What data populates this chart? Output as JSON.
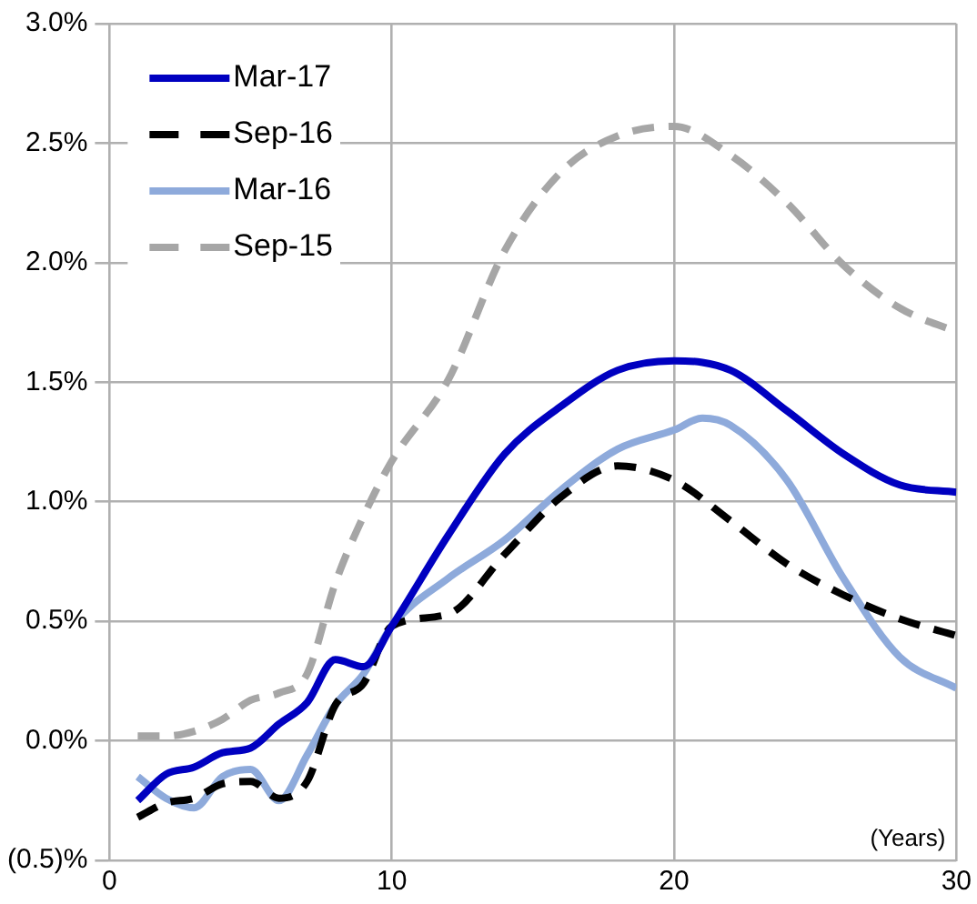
{
  "chart_data": {
    "type": "line",
    "legend": "top left",
    "grid": true,
    "marker": "none",
    "annotations": [
      "(Years)"
    ],
    "xlim": [
      0,
      30
    ],
    "xticks": [
      0,
      10,
      20,
      30
    ],
    "ylim": [
      -0.5,
      3.0
    ],
    "yticks": [
      {
        "value": -0.5,
        "label": "(0.5)%"
      },
      {
        "value": 0,
        "label": "0.0%"
      },
      {
        "value": 0.5,
        "label": "0.5%"
      },
      {
        "value": 1,
        "label": "1.0%"
      },
      {
        "value": 1.5,
        "label": "1.5%"
      },
      {
        "value": 2,
        "label": "2.0%"
      },
      {
        "value": 2.5,
        "label": "2.5%"
      },
      {
        "value": 3,
        "label": "3.0%"
      }
    ],
    "x": [
      1,
      2,
      3,
      4,
      5,
      6,
      7,
      8,
      9,
      10,
      12,
      14,
      16,
      18,
      20,
      22,
      24,
      26,
      28,
      30
    ],
    "series": [
      {
        "name": "Mar-17",
        "color": "#0000c0",
        "line_style": "solid",
        "values": [
          -0.25,
          -0.14,
          -0.11,
          -0.05,
          -0.03,
          0.07,
          0.16,
          0.34,
          0.31,
          0.48,
          0.86,
          1.2,
          1.4,
          1.55,
          1.59,
          1.55,
          1.38,
          1.2,
          1.07,
          1.04
        ]
      },
      {
        "name": "Sep-16",
        "color": "#000000",
        "line_style": "dashed",
        "values": [
          -0.32,
          -0.26,
          -0.24,
          -0.18,
          -0.17,
          -0.24,
          -0.17,
          0.15,
          0.24,
          0.48,
          0.53,
          0.78,
          1.02,
          1.15,
          1.09,
          0.92,
          0.74,
          0.61,
          0.51,
          0.44
        ]
      },
      {
        "name": "Mar-16",
        "color": "#8eaadb",
        "line_style": "solid",
        "x": [
          1,
          2,
          3,
          4,
          5,
          6,
          7,
          8,
          9,
          10,
          12,
          14,
          16,
          18,
          20,
          21,
          22,
          24,
          26,
          28,
          30
        ],
        "values": [
          -0.15,
          -0.24,
          -0.28,
          -0.15,
          -0.12,
          -0.25,
          -0.06,
          0.15,
          0.28,
          0.48,
          0.68,
          0.84,
          1.05,
          1.22,
          1.3,
          1.35,
          1.32,
          1.09,
          0.68,
          0.35,
          0.22
        ]
      },
      {
        "name": "Sep-15",
        "color": "#a6a6a6",
        "line_style": "dashed",
        "values": [
          0.02,
          0.02,
          0.04,
          0.09,
          0.17,
          0.2,
          0.28,
          0.66,
          0.94,
          1.17,
          1.51,
          2.05,
          2.38,
          2.53,
          2.57,
          2.45,
          2.25,
          1.99,
          1.81,
          1.71
        ]
      }
    ]
  }
}
